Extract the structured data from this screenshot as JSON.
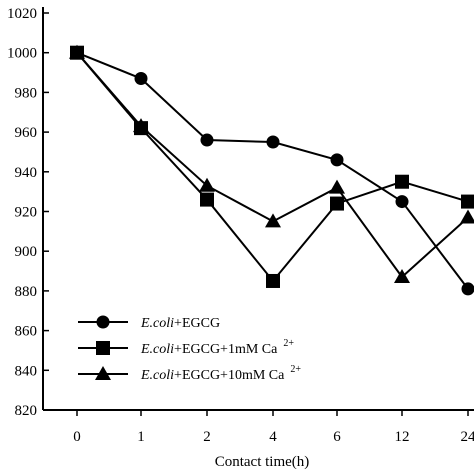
{
  "chart_data": {
    "type": "line",
    "xlabel": "Contact time(h)",
    "ylabel": "",
    "categories": [
      "0",
      "1",
      "2",
      "4",
      "6",
      "12",
      "24"
    ],
    "y_ticks": [
      820,
      840,
      860,
      880,
      900,
      920,
      940,
      960,
      980,
      1000,
      1020
    ],
    "ylim": [
      820,
      1020
    ],
    "grid": false,
    "legend_position": "bottom-left",
    "series": [
      {
        "name_italic": "E.coli",
        "name_rest": "+EGCG",
        "marker": "circle",
        "values": [
          1000,
          987,
          956,
          955,
          946,
          925,
          881
        ]
      },
      {
        "name_italic": "E.coli",
        "name_rest": "+EGCG+1mM Ca",
        "name_sup": "2+",
        "marker": "square",
        "values": [
          1000,
          962,
          926,
          885,
          924,
          935,
          925
        ]
      },
      {
        "name_italic": "E.coli",
        "name_rest": "+EGCG+10mM Ca",
        "name_sup": "2+",
        "marker": "triangle",
        "values": [
          1000,
          963,
          933,
          915,
          932,
          887,
          917
        ]
      }
    ]
  }
}
